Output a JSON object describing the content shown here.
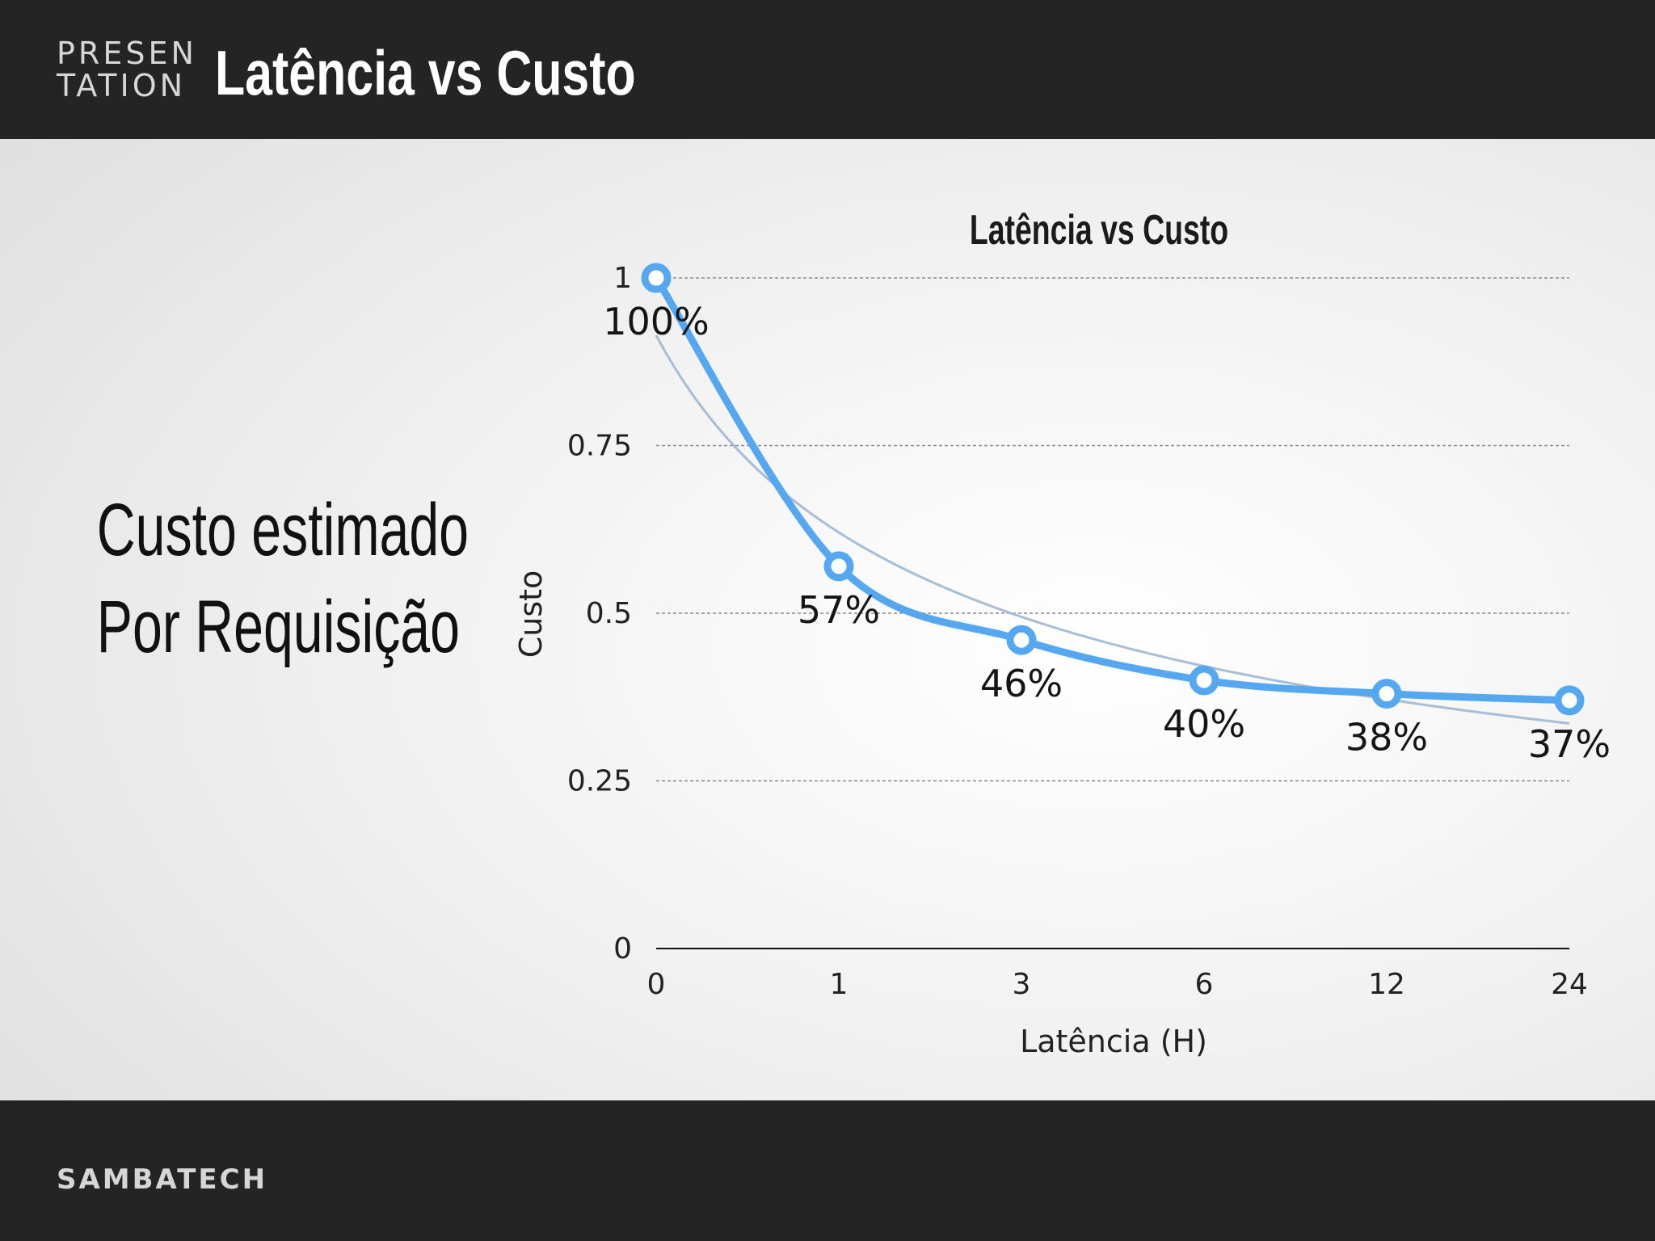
{
  "header": {
    "brand_line1": "PRESEN",
    "brand_line2": "TATION",
    "title": "Latência vs Custo"
  },
  "side_caption": {
    "line1": "Custo estimado",
    "line2": "Por Requisição"
  },
  "footer": {
    "brand": "SAMBATECH"
  },
  "colors": {
    "header_bg": "#242424",
    "series": "#55a8f0",
    "trend": "#9db7d2",
    "text_dark": "#111111"
  },
  "chart_data": {
    "type": "line",
    "title": "Latência vs Custo",
    "xlabel": "Latência (H)",
    "ylabel": "Custo",
    "categories": [
      "0",
      "1",
      "3",
      "6",
      "12",
      "24"
    ],
    "series": [
      {
        "values": [
          1.0,
          0.57,
          0.46,
          0.4,
          0.38,
          0.37
        ],
        "labels": [
          "100%",
          "57%",
          "46%",
          "40%",
          "38%",
          "37%"
        ]
      }
    ],
    "trendline": true,
    "yticks": [
      "0",
      "0.25",
      "0.5",
      "0.75",
      "1"
    ],
    "ylim": [
      0,
      1
    ],
    "grid": true
  }
}
